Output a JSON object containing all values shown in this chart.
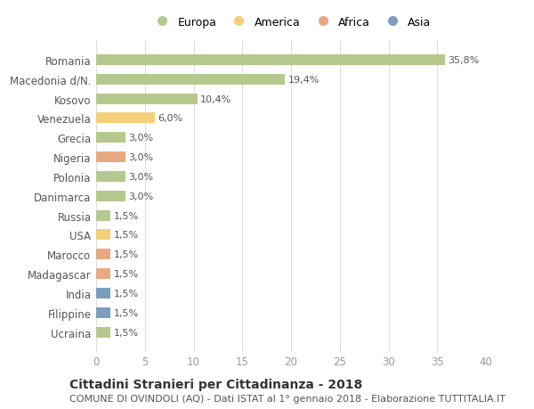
{
  "countries": [
    "Romania",
    "Macedonia d/N.",
    "Kosovo",
    "Venezuela",
    "Grecia",
    "Nigeria",
    "Polonia",
    "Danimarca",
    "Russia",
    "USA",
    "Marocco",
    "Madagascar",
    "India",
    "Filippine",
    "Ucraina"
  ],
  "values": [
    35.8,
    19.4,
    10.4,
    6.0,
    3.0,
    3.0,
    3.0,
    3.0,
    1.5,
    1.5,
    1.5,
    1.5,
    1.5,
    1.5,
    1.5
  ],
  "labels": [
    "35,8%",
    "19,4%",
    "10,4%",
    "6,0%",
    "3,0%",
    "3,0%",
    "3,0%",
    "3,0%",
    "1,5%",
    "1,5%",
    "1,5%",
    "1,5%",
    "1,5%",
    "1,5%",
    "1,5%"
  ],
  "colors": [
    "#b5c98e",
    "#b5c98e",
    "#b5c98e",
    "#f5cf7a",
    "#b5c98e",
    "#e8a882",
    "#b5c98e",
    "#b5c98e",
    "#b5c98e",
    "#f5cf7a",
    "#e8a882",
    "#e8a882",
    "#7b9ec0",
    "#7b9ec0",
    "#b5c98e"
  ],
  "legend_labels": [
    "Europa",
    "America",
    "Africa",
    "Asia"
  ],
  "legend_colors": [
    "#b5c98e",
    "#f5cf7a",
    "#e8a882",
    "#7b9ec0"
  ],
  "title": "Cittadini Stranieri per Cittadinanza - 2018",
  "subtitle": "COMUNE DI OVINDOLI (AQ) - Dati ISTAT al 1° gennaio 2018 - Elaborazione TUTTITALIA.IT",
  "xlim": [
    0,
    40
  ],
  "xticks": [
    0,
    5,
    10,
    15,
    20,
    25,
    30,
    35,
    40
  ],
  "bg_color": "#ffffff",
  "grid_color": "#dddddd",
  "bar_height": 0.55,
  "title_fontsize": 10,
  "subtitle_fontsize": 8,
  "tick_fontsize": 8.5,
  "label_fontsize": 8
}
